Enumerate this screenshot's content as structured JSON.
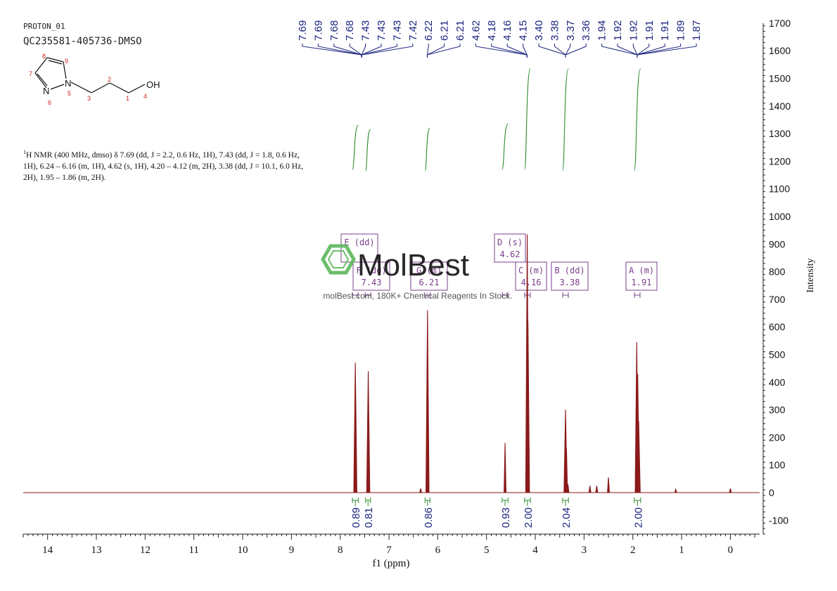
{
  "header": {
    "experiment": "PROTON_01",
    "sample": "QC235581-405736-DMSO"
  },
  "molecule": {
    "atoms": [
      {
        "label": "N",
        "num": "6"
      },
      {
        "label": "N",
        "num": "5"
      },
      {
        "label": "",
        "num": "7"
      },
      {
        "label": "",
        "num": "8"
      },
      {
        "label": "",
        "num": "9"
      },
      {
        "label": "",
        "num": "3"
      },
      {
        "label": "",
        "num": "2"
      },
      {
        "label": "",
        "num": "1"
      },
      {
        "label": "OH",
        "num": "4"
      }
    ]
  },
  "description": {
    "nucleus_sup": "1",
    "text": "H NMR (400 MHz, dmso) δ 7.69 (dd, J = 2.2, 0.6 Hz, 1H), 7.43 (dd, J = 1.8, 0.6 Hz, 1H), 6.24 – 6.16 (m, 1H), 4.62 (s, 1H), 4.20 – 4.12 (m, 2H), 3.38 (dd, J = 10.1, 6.0 Hz, 2H), 1.95 – 1.86 (m, 2H)."
  },
  "watermark": {
    "logo_text": "MolBest",
    "tagline": "molBest.com, 180K+ Chemical Reagents In Stock."
  },
  "colors": {
    "spectrum": "#8b1a1a",
    "integral": "#2e8b2e",
    "peak_label": "#1a237e",
    "multiplet": "#7b3f8c",
    "axis": "#222222",
    "watermark_green": "#5cb85c"
  },
  "chart_data": {
    "type": "line",
    "xlabel": "f1 (ppm)",
    "ylabel": "Intensity",
    "xlim": [
      14.5,
      -0.6
    ],
    "ylim": [
      -150,
      1720
    ],
    "x_ticks": [
      14,
      13,
      12,
      11,
      10,
      9,
      8,
      7,
      6,
      5,
      4,
      3,
      2,
      1,
      0
    ],
    "y_ticks": [
      -100,
      0,
      100,
      200,
      300,
      400,
      500,
      600,
      700,
      800,
      900,
      1000,
      1100,
      1200,
      1300,
      1400,
      1500,
      1600,
      1700
    ],
    "peaks": [
      {
        "ppm": 7.69,
        "height": 470
      },
      {
        "ppm": 7.425,
        "height": 440
      },
      {
        "ppm": 6.21,
        "height": 660
      },
      {
        "ppm": 4.62,
        "height": 180
      },
      {
        "ppm": 4.165,
        "height": 935
      },
      {
        "ppm": 4.15,
        "height": 620
      },
      {
        "ppm": 3.38,
        "height": 300
      },
      {
        "ppm": 3.36,
        "height": 160
      },
      {
        "ppm": 2.5,
        "height": 55
      },
      {
        "ppm": 1.92,
        "height": 545
      },
      {
        "ppm": 1.9,
        "height": 430
      },
      {
        "ppm": 1.88,
        "height": 260
      },
      {
        "ppm": 3.33,
        "height": 30
      },
      {
        "ppm": 2.88,
        "height": 25
      },
      {
        "ppm": 2.74,
        "height": 25
      },
      {
        "ppm": 6.35,
        "height": 15
      },
      {
        "ppm": 1.12,
        "height": 12
      },
      {
        "ppm": 0.0,
        "height": 15
      }
    ],
    "peak_labels": [
      {
        "values": [
          "7.69",
          "7.69",
          "7.68",
          "7.68",
          "7.43",
          "7.43",
          "7.43",
          "7.42"
        ],
        "center": 7.56
      },
      {
        "values": [
          "6.22",
          "6.21",
          "6.21"
        ],
        "center": 6.215
      },
      {
        "values": [
          "4.62",
          "4.18",
          "4.16",
          "4.15"
        ],
        "center": 4.17
      },
      {
        "values": [
          "3.40",
          "3.38",
          "3.37",
          "3.36"
        ],
        "center": 3.38
      },
      {
        "values": [
          "1.94",
          "1.92",
          "1.92",
          "1.91",
          "1.91",
          "1.89",
          "1.87"
        ],
        "center": 1.91
      }
    ],
    "multiplets": [
      {
        "id": "E",
        "type": "dd",
        "shift": "",
        "ppm": 7.69
      },
      {
        "id": "F",
        "type": "dd",
        "shift": "7.43",
        "ppm": 7.43
      },
      {
        "id": "G",
        "type": "m",
        "shift": "6.21",
        "ppm": 6.21
      },
      {
        "id": "D",
        "type": "s",
        "shift": "4.62",
        "ppm": 4.62
      },
      {
        "id": "C",
        "type": "m",
        "shift": "4.16",
        "ppm": 4.16
      },
      {
        "id": "B",
        "type": "dd",
        "shift": "3.38",
        "ppm": 3.38
      },
      {
        "id": "A",
        "type": "m",
        "shift": "1.91",
        "ppm": 1.91
      }
    ],
    "integrals": [
      {
        "value": "0.89",
        "from": 7.75,
        "to": 7.63,
        "top": 1330,
        "bottom": 1170
      },
      {
        "value": "0.81",
        "from": 7.48,
        "to": 7.38,
        "top": 1315,
        "bottom": 1165
      },
      {
        "value": "0.86",
        "from": 6.26,
        "to": 6.16,
        "top": 1320,
        "bottom": 1165
      },
      {
        "value": "0.93",
        "from": 4.68,
        "to": 4.56,
        "top": 1335,
        "bottom": 1170
      },
      {
        "value": "2.00",
        "from": 4.22,
        "to": 4.1,
        "top": 1535,
        "bottom": 1170
      },
      {
        "value": "2.04",
        "from": 3.44,
        "to": 3.32,
        "top": 1535,
        "bottom": 1165
      },
      {
        "value": "2.00",
        "from": 1.97,
        "to": 1.84,
        "top": 1535,
        "bottom": 1165
      }
    ]
  }
}
